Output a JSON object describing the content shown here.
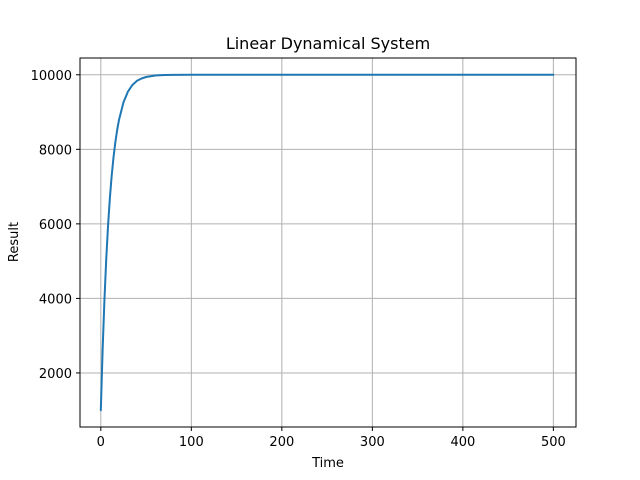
{
  "chart_data": {
    "type": "line",
    "title": "Linear Dynamical System",
    "xlabel": "Time",
    "ylabel": "Result",
    "xlim": [
      -23,
      525
    ],
    "ylim": [
      550,
      10450
    ],
    "xticks": [
      0,
      100,
      200,
      300,
      400,
      500
    ],
    "yticks": [
      2000,
      4000,
      6000,
      8000,
      10000
    ],
    "grid": true,
    "series": [
      {
        "color": "#1f77b4",
        "x": [
          0,
          2,
          4,
          6,
          8,
          10,
          12,
          14,
          16,
          18,
          20,
          25,
          30,
          35,
          40,
          45,
          50,
          60,
          70,
          80,
          100,
          150,
          200,
          300,
          400,
          500
        ],
        "y": [
          1000,
          2630,
          3960,
          5060,
          5960,
          6690,
          7290,
          7780,
          8180,
          8510,
          8780,
          9260,
          9550,
          9730,
          9840,
          9900,
          9940,
          9980,
          9993,
          9997,
          10000,
          10000,
          10000,
          10000,
          10000,
          10000
        ]
      }
    ]
  }
}
